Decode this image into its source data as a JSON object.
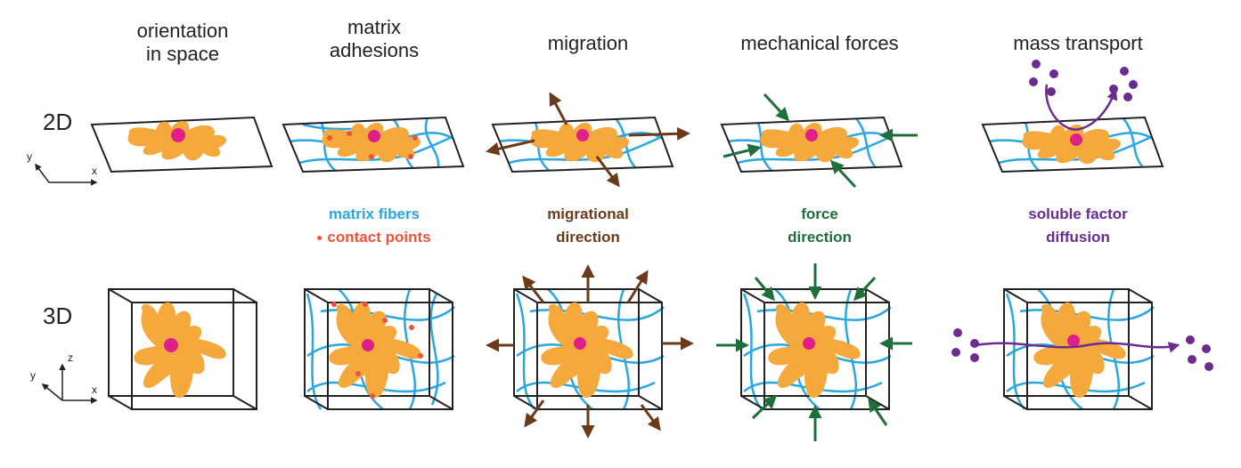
{
  "columns": [
    {
      "title_line1": "orientation",
      "title_line2": "in space"
    },
    {
      "title_line1": "matrix",
      "title_line2": "adhesions"
    },
    {
      "title_line1": "migration",
      "title_line2": ""
    },
    {
      "title_line1": "mechanical forces",
      "title_line2": ""
    },
    {
      "title_line1": "mass transport",
      "title_line2": ""
    }
  ],
  "rows": {
    "row_2d": "2D",
    "row_3d": "3D"
  },
  "axes": {
    "x": "x",
    "y": "y",
    "z": "z"
  },
  "legends": {
    "matrix_fibers": "matrix fibers",
    "contact_points": "contact points",
    "migrational_line1": "migrational",
    "migrational_line2": "direction",
    "force_line1": "force",
    "force_line2": "direction",
    "soluble_line1": "soluble factor",
    "soluble_line2": "diffusion"
  },
  "colors": {
    "cell": "#F5A93C",
    "nucleus": "#E0208A",
    "fiber": "#2AA7DF",
    "contact": "#F0533A",
    "migration": "#6B3A1A",
    "force": "#1F6F3A",
    "diffusion": "#6A2C91",
    "outline": "#222222"
  }
}
